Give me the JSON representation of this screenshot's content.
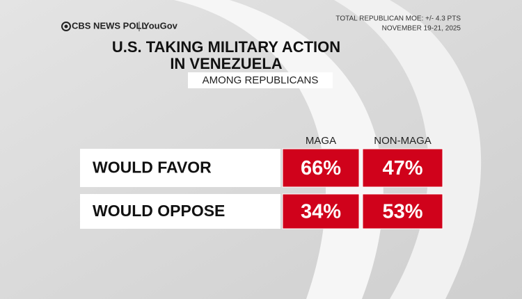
{
  "header": {
    "source": "CBS NEWS POLL",
    "partner": "YouGov",
    "moe": "TOTAL REPUBLICAN MOE: +/- 4.3 PTS",
    "date": "NOVEMBER 19-21, 2025"
  },
  "title": [
    "U.S. TAKING MILITARY ACTION",
    "IN VENEZUELA"
  ],
  "subtitle": "AMONG REPUBLICANS",
  "table": {
    "columns": [
      "MAGA",
      "NON-MAGA"
    ],
    "rows": [
      [
        "WOULD FAVOR",
        "66%",
        "47%"
      ],
      [
        "WOULD OPPOSE",
        "34%",
        "53%"
      ]
    ]
  }
}
